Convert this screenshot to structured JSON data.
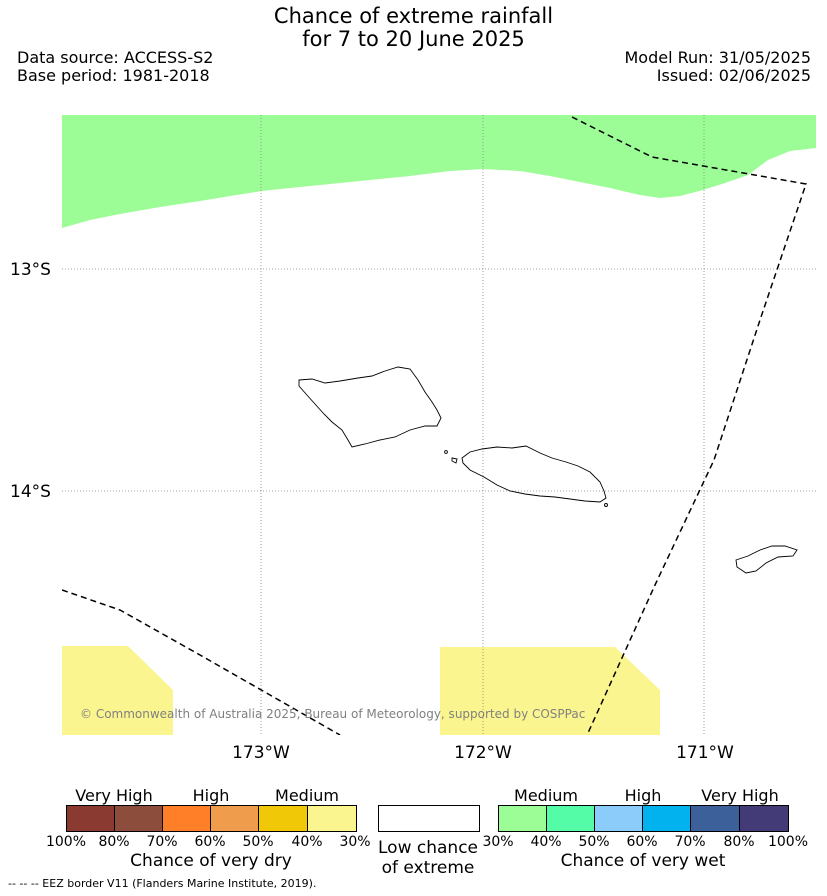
{
  "header": {
    "title_line1": "Chance of extreme rainfall",
    "title_line2": "for 7 to 20 June 2025",
    "data_source": "Data source: ACCESS-S2",
    "base_period": "Base period: 1981-2018",
    "model_run": "Model Run: 31/05/2025",
    "issued": "Issued: 02/06/2025"
  },
  "map": {
    "lat_labels": [
      "13°S",
      "14°S"
    ],
    "lon_labels": [
      "173°W",
      "172°W",
      "171°W"
    ],
    "copyright": "© Commonwealth of Australia 2025, Bureau of Meteorology, supported by COSPPac",
    "colors": {
      "medium_wet": "#9cfc96",
      "medium_dry": "#fbf58f",
      "coast": "#000000",
      "eez": "#000000"
    }
  },
  "legend_dry": {
    "categories": [
      "Very High",
      "High",
      "Medium"
    ],
    "ticks": [
      "100%",
      "80%",
      "70%",
      "60%",
      "50%",
      "40%",
      "30%"
    ],
    "colors": [
      "#8b3a32",
      "#8d4d3c",
      "#ff7f28",
      "#ef9c4c",
      "#f0c808",
      "#fbf58f"
    ],
    "title": "Chance of very dry"
  },
  "legend_low": {
    "title_line1": "Low chance",
    "title_line2": "of extreme",
    "color": "#ffffff"
  },
  "legend_wet": {
    "categories": [
      "Medium",
      "High",
      "Very High"
    ],
    "ticks": [
      "30%",
      "40%",
      "50%",
      "60%",
      "70%",
      "80%",
      "100%"
    ],
    "colors": [
      "#9cfc96",
      "#55fca8",
      "#8cccfa",
      "#02b2ee",
      "#3c6099",
      "#433b78"
    ],
    "title": "Chance of very wet"
  },
  "footnote": "--  --  -- EEZ border V11 (Flanders Marine Institute, 2019)."
}
